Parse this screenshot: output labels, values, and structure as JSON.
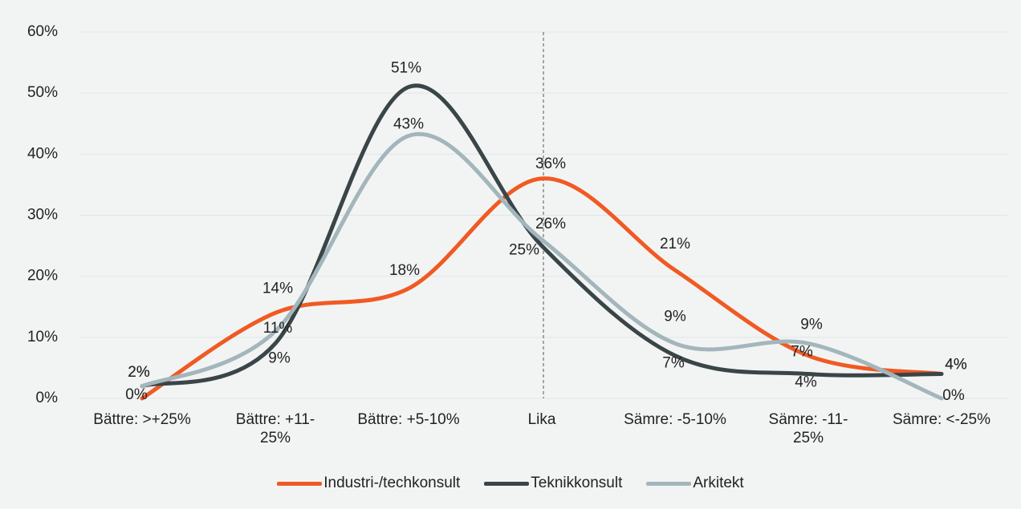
{
  "chart_data": {
    "type": "line",
    "categories": [
      "Bättre: >+25%",
      "Bättre: +11-\n25%",
      "Bättre: +5-10%",
      "Lika",
      "Sämre: -5-10%",
      "Sämre: -11-\n25%",
      "Sämre: <-25%"
    ],
    "series": [
      {
        "name": "Industri-/techkonsult",
        "color": "#f05a23",
        "values": [
          0,
          14,
          18,
          36,
          21,
          7,
          4
        ]
      },
      {
        "name": "Teknikkonsult",
        "color": "#3a4548",
        "values": [
          2,
          9,
          51,
          25,
          7,
          4,
          4
        ]
      },
      {
        "name": "Arkitekt",
        "color": "#a3b6bc",
        "values": [
          2,
          11,
          43,
          26,
          9,
          9,
          0
        ]
      }
    ],
    "ylim": [
      0,
      60
    ],
    "yticks": [
      {
        "value": 0,
        "label": "0%"
      },
      {
        "value": 10,
        "label": "10%"
      },
      {
        "value": 20,
        "label": "20%"
      },
      {
        "value": 30,
        "label": "30%"
      },
      {
        "value": 40,
        "label": "40%"
      },
      {
        "value": 50,
        "label": "50%"
      },
      {
        "value": 60,
        "label": "60%"
      }
    ],
    "value_labels": [
      [
        "0%",
        "14%",
        "18%",
        "36%",
        "21%",
        "7%",
        "4%"
      ],
      [
        "2%",
        "9%",
        "51%",
        "25%",
        "7%",
        "4%",
        "4%"
      ],
      [
        "2%",
        "11%",
        "43%",
        "26%",
        "9%",
        "9%",
        "0%"
      ]
    ],
    "grid": true,
    "smooth": true,
    "legend": "bottom"
  }
}
